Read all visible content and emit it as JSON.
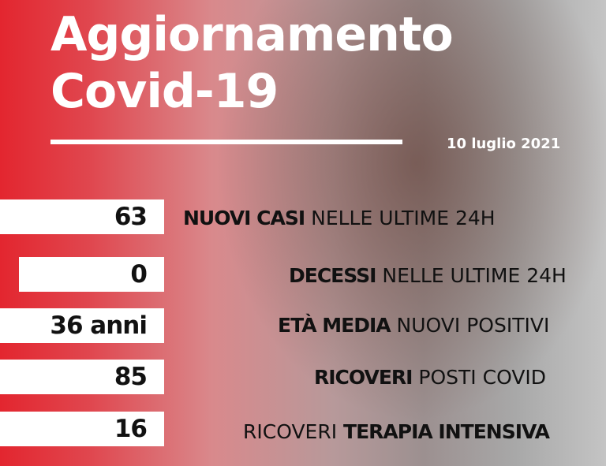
{
  "title": {
    "line1": "Aggiornamento",
    "line2": "Covid-19"
  },
  "date": "10  luglio 2021",
  "stats": [
    {
      "value": "63",
      "bold": "NUOVI CASI",
      "rest": " NELLE ULTIME 24H"
    },
    {
      "value": "0",
      "bold": "DECESSI",
      "rest": " NELLE ULTIME 24H"
    },
    {
      "value": "36 anni",
      "bold": "ETÀ MEDIA",
      "rest": " NUOVI POSITIVI"
    },
    {
      "value": "85",
      "bold": "RICOVERI",
      "rest": " POSTI COVID"
    },
    {
      "value": "16",
      "pre": "RICOVERI ",
      "bold": "TERAPIA INTENSIVA"
    }
  ]
}
